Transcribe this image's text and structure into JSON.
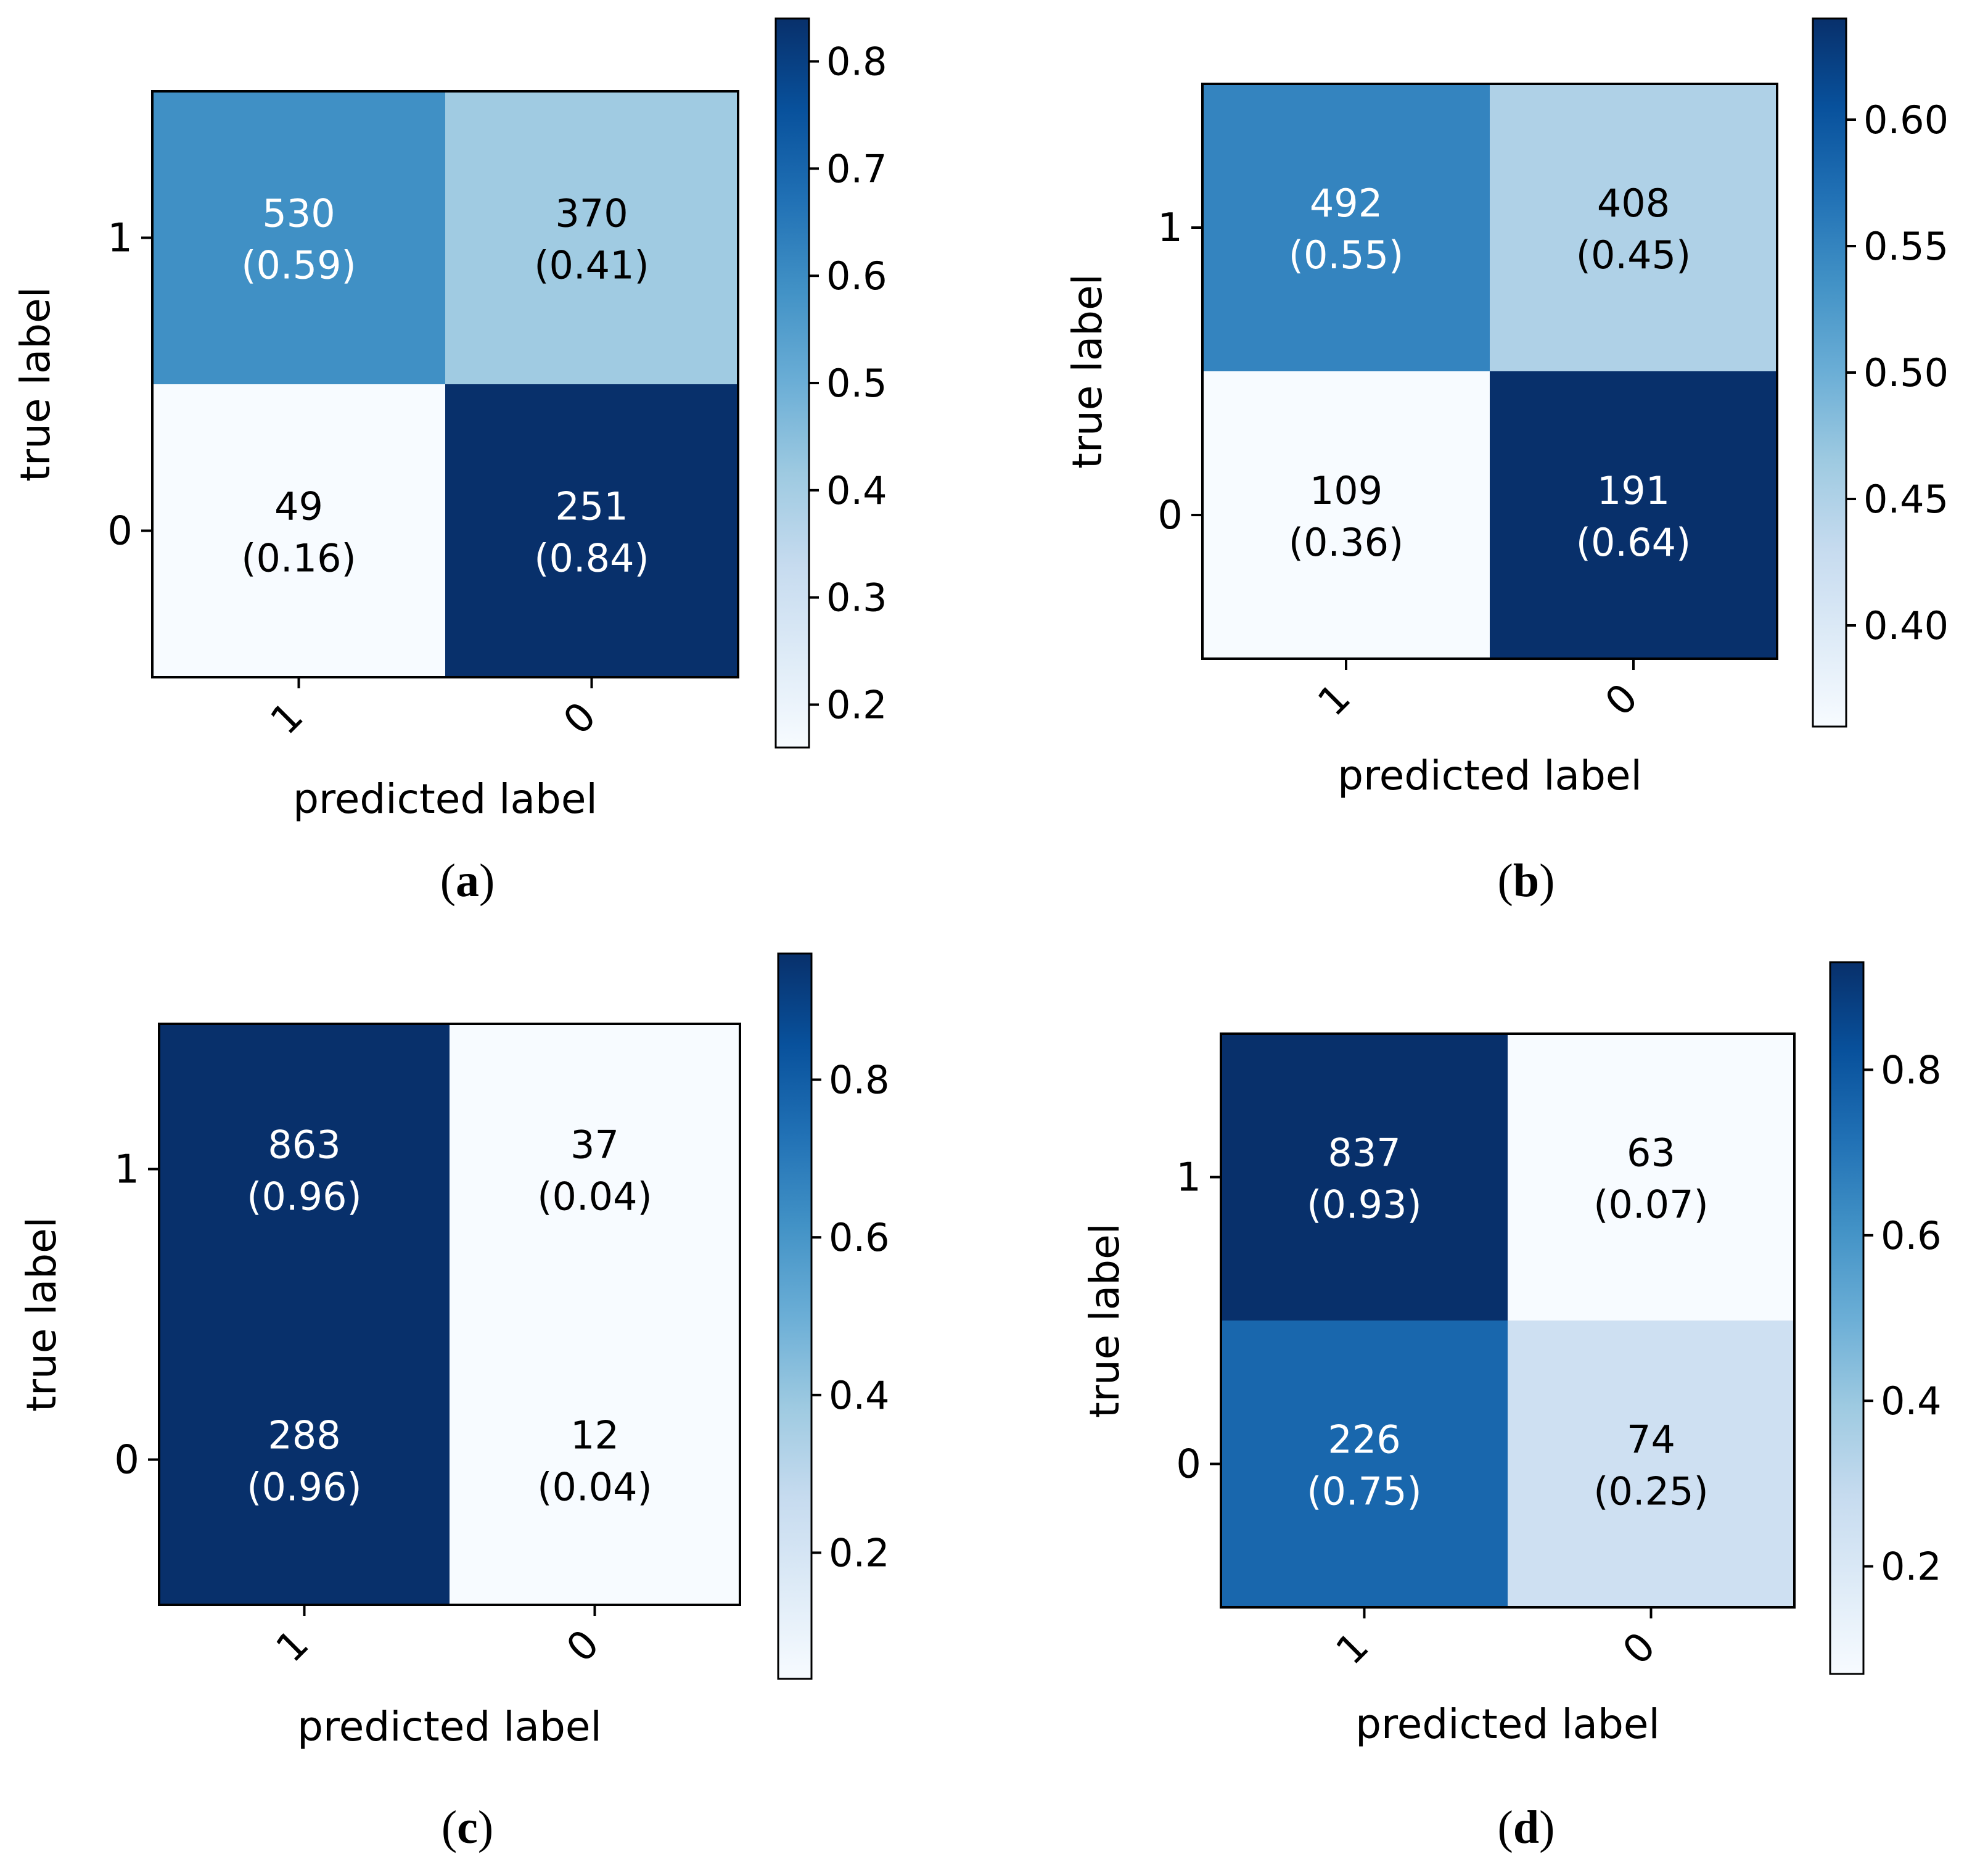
{
  "chart_data": [
    {
      "type": "heatmap",
      "panel": "a",
      "xlabel": "predicted label",
      "ylabel": "true label",
      "x_ticks": [
        "1",
        "0"
      ],
      "y_ticks": [
        "1",
        "0"
      ],
      "cells": [
        {
          "row": "1",
          "col": "1",
          "count": "530",
          "ratio": "(0.59)",
          "value": 0.59
        },
        {
          "row": "1",
          "col": "0",
          "count": "370",
          "ratio": "(0.41)",
          "value": 0.41
        },
        {
          "row": "0",
          "col": "1",
          "count": "49",
          "ratio": "(0.16)",
          "value": 0.16
        },
        {
          "row": "0",
          "col": "0",
          "count": "251",
          "ratio": "(0.84)",
          "value": 0.84
        }
      ],
      "colorbar": {
        "min": 0.16,
        "max": 0.84,
        "ticks": [
          0.2,
          0.3,
          0.4,
          0.5,
          0.6,
          0.7,
          0.8
        ],
        "tick_labels": [
          "0.2",
          "0.3",
          "0.4",
          "0.5",
          "0.6",
          "0.7",
          "0.8"
        ]
      }
    },
    {
      "type": "heatmap",
      "panel": "b",
      "xlabel": "predicted label",
      "ylabel": "true label",
      "x_ticks": [
        "1",
        "0"
      ],
      "y_ticks": [
        "1",
        "0"
      ],
      "cells": [
        {
          "row": "1",
          "col": "1",
          "count": "492",
          "ratio": "(0.55)",
          "value": 0.55
        },
        {
          "row": "1",
          "col": "0",
          "count": "408",
          "ratio": "(0.45)",
          "value": 0.45
        },
        {
          "row": "0",
          "col": "1",
          "count": "109",
          "ratio": "(0.36)",
          "value": 0.36
        },
        {
          "row": "0",
          "col": "0",
          "count": "191",
          "ratio": "(0.64)",
          "value": 0.64
        }
      ],
      "colorbar": {
        "min": 0.36,
        "max": 0.64,
        "ticks": [
          0.4,
          0.45,
          0.5,
          0.55,
          0.6
        ],
        "tick_labels": [
          "0.40",
          "0.45",
          "0.50",
          "0.55",
          "0.60"
        ]
      }
    },
    {
      "type": "heatmap",
      "panel": "c",
      "xlabel": "predicted label",
      "ylabel": "true label",
      "x_ticks": [
        "1",
        "0"
      ],
      "y_ticks": [
        "1",
        "0"
      ],
      "cells": [
        {
          "row": "1",
          "col": "1",
          "count": "863",
          "ratio": "(0.96)",
          "value": 0.96
        },
        {
          "row": "1",
          "col": "0",
          "count": "37",
          "ratio": "(0.04)",
          "value": 0.04
        },
        {
          "row": "0",
          "col": "1",
          "count": "288",
          "ratio": "(0.96)",
          "value": 0.96
        },
        {
          "row": "0",
          "col": "0",
          "count": "12",
          "ratio": "(0.04)",
          "value": 0.04
        }
      ],
      "colorbar": {
        "min": 0.04,
        "max": 0.96,
        "ticks": [
          0.2,
          0.4,
          0.6,
          0.8
        ],
        "tick_labels": [
          "0.2",
          "0.4",
          "0.6",
          "0.8"
        ]
      }
    },
    {
      "type": "heatmap",
      "panel": "d",
      "xlabel": "predicted label",
      "ylabel": "true label",
      "x_ticks": [
        "1",
        "0"
      ],
      "y_ticks": [
        "1",
        "0"
      ],
      "cells": [
        {
          "row": "1",
          "col": "1",
          "count": "837",
          "ratio": "(0.93)",
          "value": 0.93
        },
        {
          "row": "1",
          "col": "0",
          "count": "63",
          "ratio": "(0.07)",
          "value": 0.07
        },
        {
          "row": "0",
          "col": "1",
          "count": "226",
          "ratio": "(0.75)",
          "value": 0.75
        },
        {
          "row": "0",
          "col": "0",
          "count": "74",
          "ratio": "(0.25)",
          "value": 0.25
        }
      ],
      "colorbar": {
        "min": 0.07,
        "max": 0.93,
        "ticks": [
          0.2,
          0.4,
          0.6,
          0.8
        ],
        "tick_labels": [
          "0.2",
          "0.4",
          "0.6",
          "0.8"
        ]
      }
    }
  ],
  "panel_labels": [
    "a",
    "b",
    "c",
    "d"
  ],
  "colors": {
    "blues": [
      "#f7fbff",
      "#deebf7",
      "#c6dbef",
      "#9ecae1",
      "#6baed6",
      "#4292c6",
      "#2171b5",
      "#08519c",
      "#08306b"
    ],
    "dark_text": "#000000",
    "light_text": "#ffffff"
  }
}
